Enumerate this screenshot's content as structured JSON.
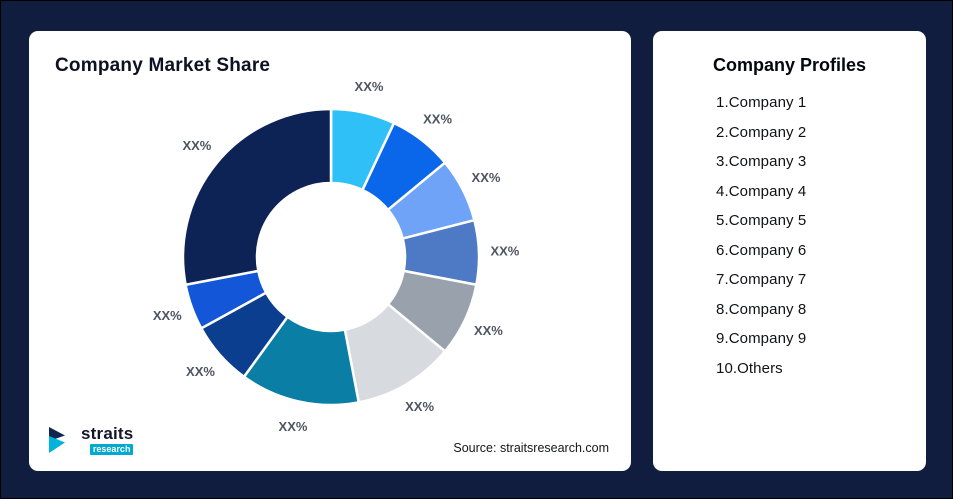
{
  "left_card": {
    "title": "Company Market Share",
    "source": "Source: straitsresearch.com",
    "logo": {
      "name": "straits",
      "sub": "research"
    }
  },
  "right_card": {
    "title": "Company Profiles",
    "items": [
      "1.Company 1",
      "2.Company 2",
      "3.Company 3",
      "4.Company 4",
      "5.Company 5",
      "6.Company 6",
      "7.Company 7",
      "8.Company 8",
      "9.Company 9",
      "10.Others"
    ]
  },
  "chart_data": {
    "type": "pie",
    "variant": "donut",
    "title": "Company Market Share",
    "categories": [
      "Company 1",
      "Company 2",
      "Company 3",
      "Company 4",
      "Company 5",
      "Company 6",
      "Company 7",
      "Company 8",
      "Company 9",
      "Others"
    ],
    "values": [
      7,
      7,
      7,
      7,
      8,
      11,
      13,
      7,
      5,
      28
    ],
    "values_note": "approximate; all slices labeled XX% in source image",
    "slice_labels": [
      "XX%",
      "XX%",
      "XX%",
      "XX%",
      "XX%",
      "XX%",
      "XX%",
      "XX%",
      "XX%",
      "XX%"
    ],
    "colors": [
      "#30c0f8",
      "#0a67e9",
      "#6fa3f7",
      "#4e79c5",
      "#99a1ad",
      "#d7dbe0",
      "#0b7ea6",
      "#0c3e8f",
      "#1456d8",
      "#0e2355"
    ],
    "start_angle_deg": 0,
    "direction": "clockwise",
    "inner_radius_ratio": 0.5,
    "legend": "none",
    "label_color": "#4d5560"
  }
}
